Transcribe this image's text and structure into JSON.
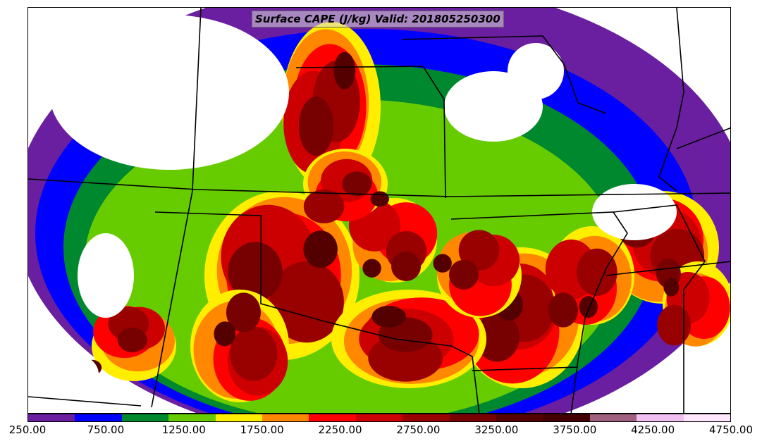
{
  "title": "Surface CAPE (J/kg) Valid: 201805250300",
  "colorbar": {
    "colors": [
      "#6a1fa0",
      "#0000ff",
      "#00882e",
      "#66cc00",
      "#ffee00",
      "#ff8800",
      "#ff0000",
      "#cc0000",
      "#990000",
      "#770000",
      "#550000",
      "#440000",
      "#a06080",
      "#f0c0f0",
      "#ffe8ff"
    ],
    "ticks": [
      "250.00",
      "750.00",
      "1250.00",
      "1750.00",
      "2250.00",
      "2750.00",
      "3250.00",
      "3750.00",
      "4250.00",
      "4750.00"
    ],
    "min": 250,
    "max": 4750
  },
  "chart_data": {
    "type": "heatmap",
    "title": "Surface CAPE (J/kg) Valid: 201805250300",
    "variable": "Surface CAPE",
    "units": "J/kg",
    "valid_time": "201805250300",
    "levels": [
      250,
      500,
      750,
      1000,
      1250,
      1500,
      1750,
      2000,
      2250,
      2500,
      2750,
      3000,
      3250,
      3500,
      3750,
      4000,
      4250,
      4500,
      4750
    ],
    "colorbar_tick_labels": [
      "250.00",
      "750.00",
      "1250.00",
      "1750.00",
      "2250.00",
      "2750.00",
      "3250.00",
      "3750.00",
      "4250.00",
      "4750.00"
    ]
  }
}
